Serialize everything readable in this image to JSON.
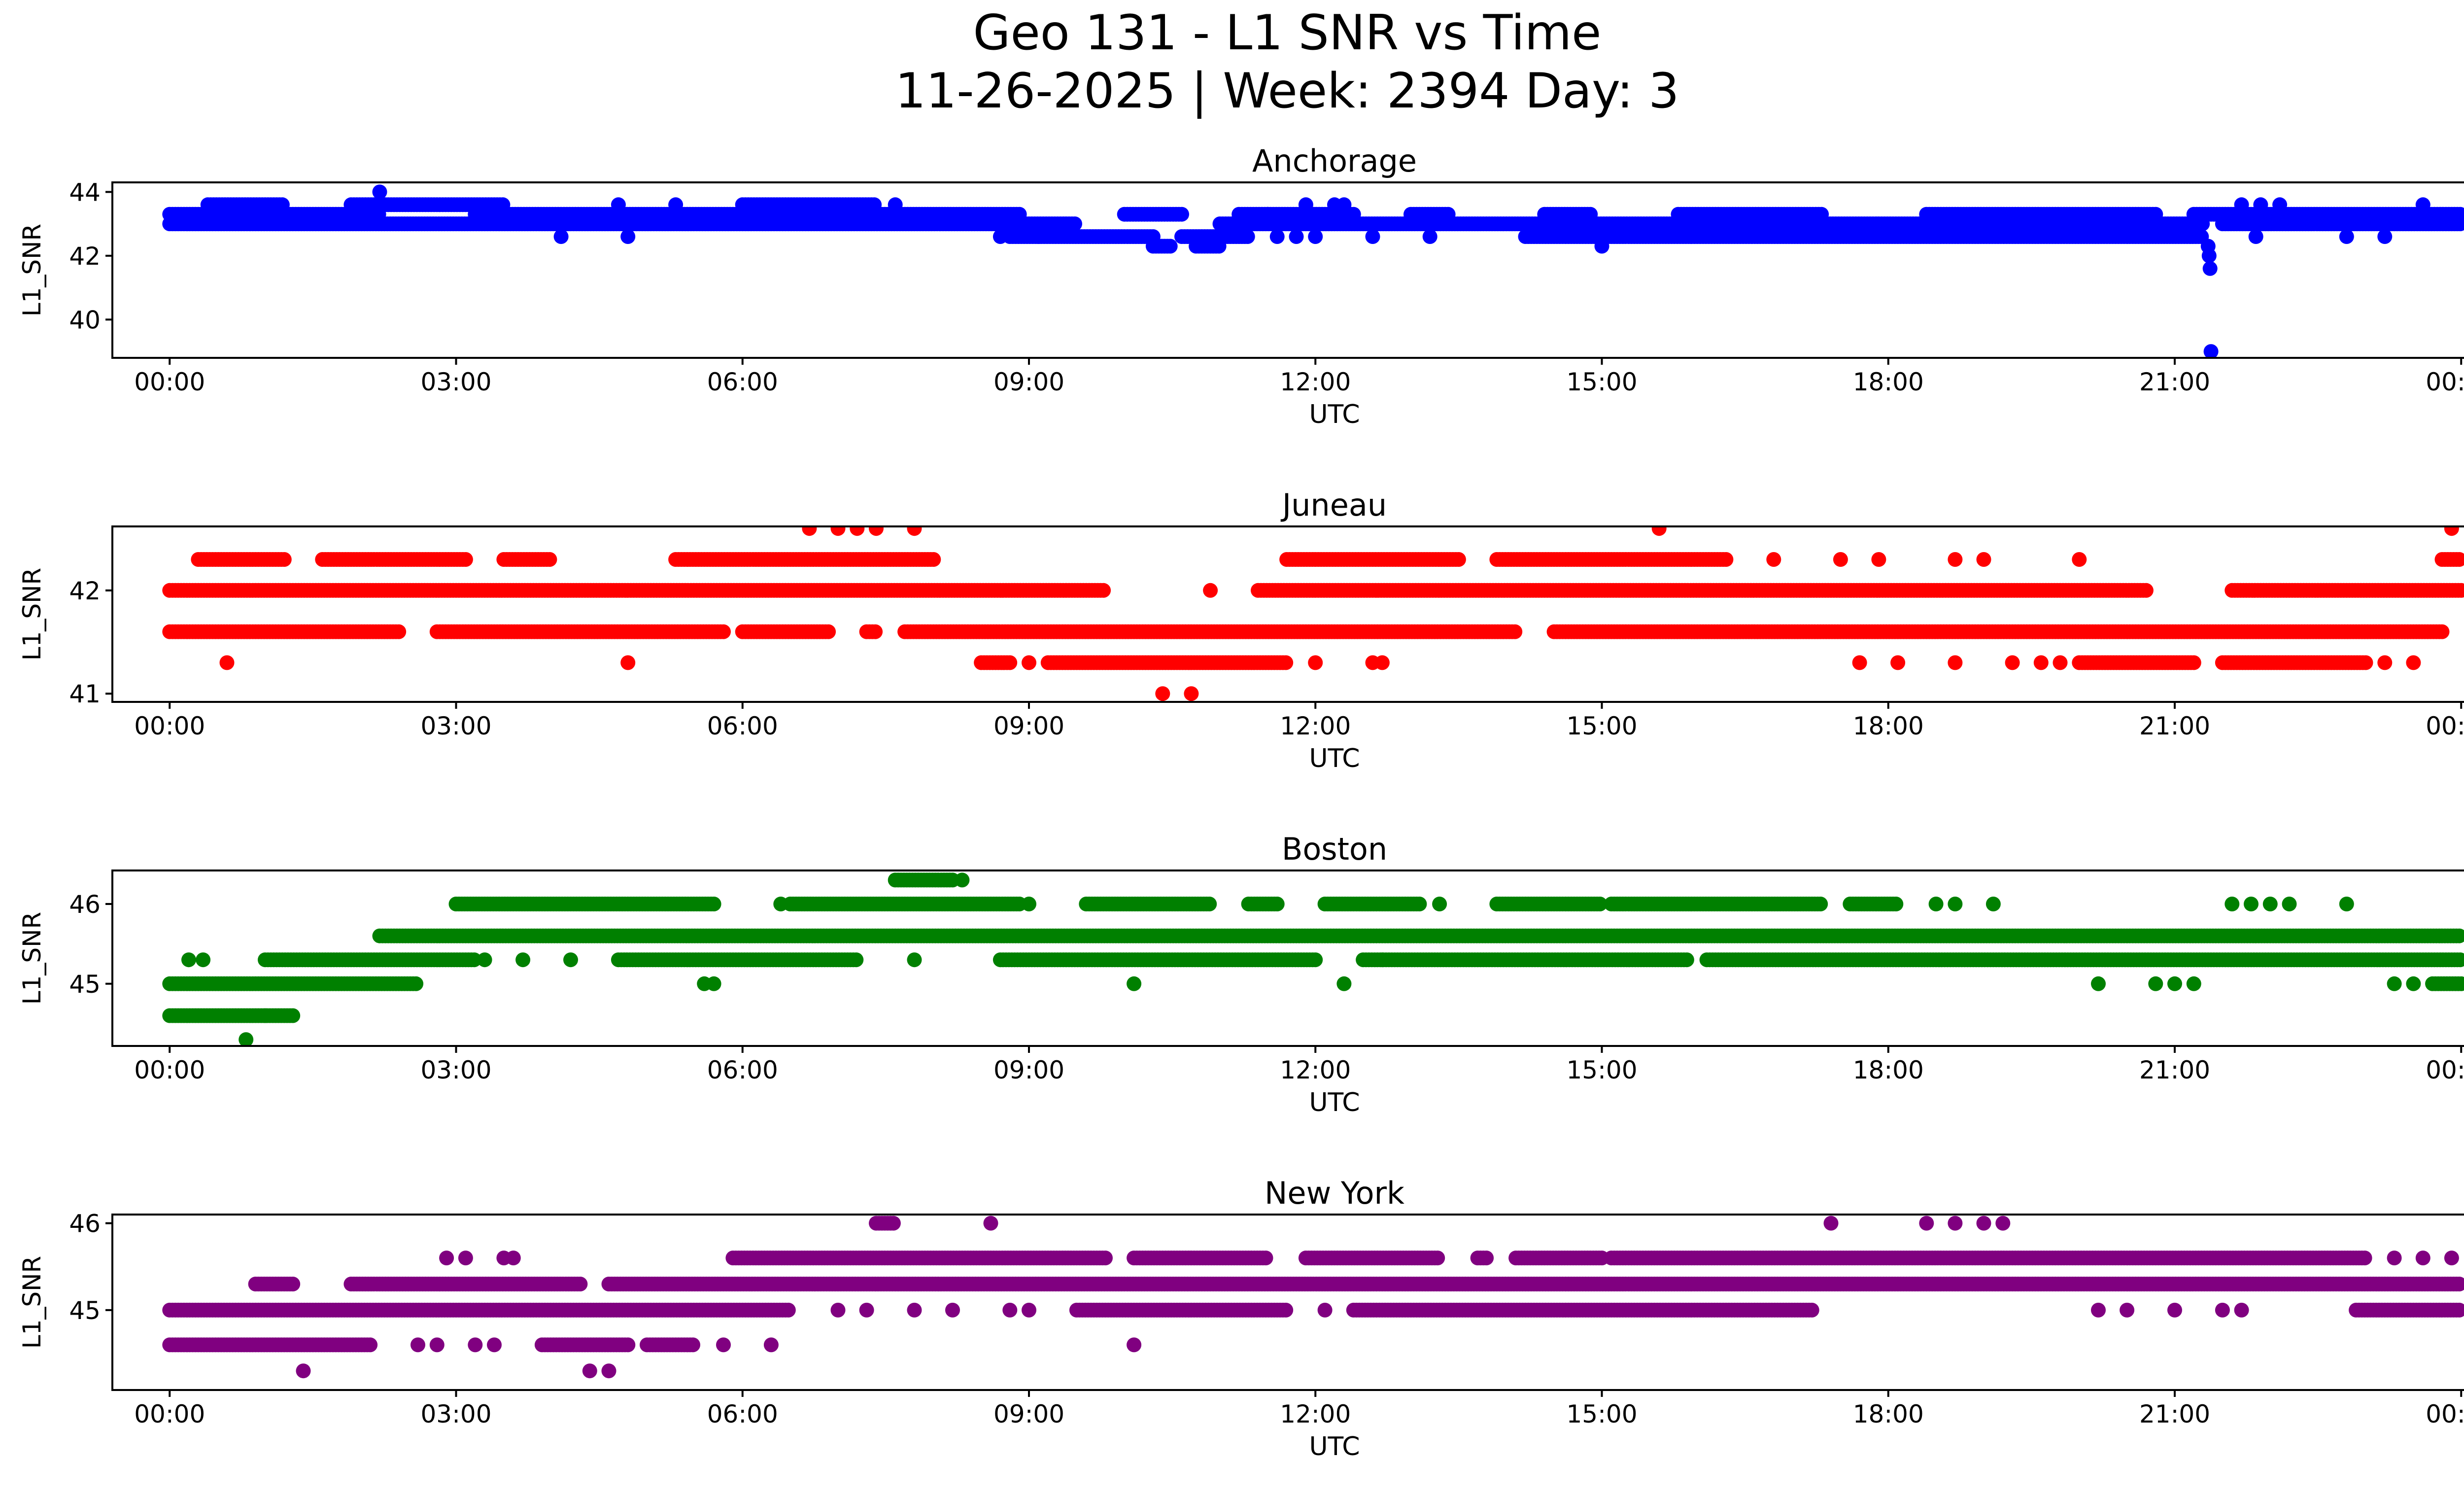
{
  "figure": {
    "title_line1": "Geo 131 - L1 SNR vs Time",
    "title_line2": "11-26-2025 | Week: 2394 Day: 3"
  },
  "chart_data": [
    {
      "type": "scatter",
      "title": "Anchorage",
      "xlabel": "UTC",
      "ylabel": "L1_SNR",
      "color": "#0000ff",
      "xlim": [
        -0.6,
        25.0
      ],
      "ylim": [
        38.8,
        44.3
      ],
      "x_ticks": [
        0,
        3,
        6,
        9,
        12,
        15,
        18,
        21,
        24
      ],
      "x_tick_labels": [
        "00:00",
        "03:00",
        "06:00",
        "09:00",
        "12:00",
        "15:00",
        "18:00",
        "21:00",
        "00:00"
      ],
      "y_ticks": [
        40,
        42,
        44
      ],
      "y_tick_labels": [
        "40",
        "42",
        "44"
      ],
      "levels": [
        {
          "y": 43.3,
          "segments": [
            [
              0.0,
              2.2
            ],
            [
              3.2,
              8.9
            ],
            [
              10.0,
              10.6
            ],
            [
              11.2,
              12.4
            ],
            [
              13.0,
              13.4
            ],
            [
              14.4,
              14.9
            ],
            [
              15.8,
              17.3
            ],
            [
              18.4,
              20.8
            ],
            [
              21.2,
              24.0
            ]
          ]
        },
        {
          "y": 43.0,
          "segments": [
            [
              0.0,
              9.5
            ],
            [
              11.0,
              21.3
            ],
            [
              21.5,
              24.0
            ]
          ]
        },
        {
          "y": 42.6,
          "segments": [
            [
              8.8,
              10.3
            ],
            [
              10.6,
              11.3
            ],
            [
              14.2,
              21.3
            ]
          ]
        },
        {
          "y": 43.6,
          "segments": [
            [
              0.4,
              1.2
            ],
            [
              1.9,
              3.5
            ],
            [
              6.0,
              7.4
            ]
          ]
        },
        {
          "y": 42.3,
          "segments": [
            [
              10.3,
              10.5
            ],
            [
              10.75,
              11.0
            ]
          ]
        }
      ],
      "scattered": [
        [
          2.2,
          44.0
        ],
        [
          4.1,
          42.6
        ],
        [
          4.8,
          42.6
        ],
        [
          4.7,
          43.6
        ],
        [
          5.3,
          43.6
        ],
        [
          7.6,
          43.6
        ],
        [
          8.7,
          42.6
        ],
        [
          9.1,
          42.6
        ],
        [
          11.5,
          43.3
        ],
        [
          11.6,
          42.6
        ],
        [
          11.8,
          42.6
        ],
        [
          12.0,
          42.6
        ],
        [
          11.9,
          43.6
        ],
        [
          12.2,
          43.6
        ],
        [
          12.3,
          43.6
        ],
        [
          12.6,
          42.6
        ],
        [
          13.2,
          42.6
        ],
        [
          15.0,
          42.3
        ],
        [
          21.35,
          42.3
        ],
        [
          21.36,
          42.0
        ],
        [
          21.37,
          41.6
        ],
        [
          21.38,
          39.0
        ],
        [
          21.7,
          43.6
        ],
        [
          21.9,
          43.6
        ],
        [
          22.1,
          43.6
        ],
        [
          21.85,
          42.6
        ],
        [
          22.8,
          42.6
        ],
        [
          23.2,
          42.6
        ],
        [
          23.6,
          43.6
        ]
      ]
    },
    {
      "type": "scatter",
      "title": "Juneau",
      "xlabel": "UTC",
      "ylabel": "L1_SNR",
      "color": "#ff0000",
      "xlim": [
        -0.6,
        25.0
      ],
      "ylim": [
        40.92,
        42.62
      ],
      "x_ticks": [
        0,
        3,
        6,
        9,
        12,
        15,
        18,
        21,
        24
      ],
      "x_tick_labels": [
        "00:00",
        "03:00",
        "06:00",
        "09:00",
        "12:00",
        "15:00",
        "18:00",
        "21:00",
        "00:00"
      ],
      "y_ticks": [
        41,
        42
      ],
      "y_tick_labels": [
        "41",
        "42"
      ],
      "levels": [
        {
          "y": 42.0,
          "segments": [
            [
              0.0,
              9.8
            ],
            [
              10.9,
              10.9
            ],
            [
              11.4,
              20.7
            ],
            [
              21.6,
              24.0
            ]
          ]
        },
        {
          "y": 41.6,
          "segments": [
            [
              0.0,
              2.4
            ],
            [
              2.8,
              5.8
            ],
            [
              6.0,
              6.9
            ],
            [
              7.3,
              7.4
            ],
            [
              7.7,
              14.1
            ],
            [
              14.5,
              23.8
            ]
          ]
        },
        {
          "y": 42.3,
          "segments": [
            [
              0.3,
              1.2
            ],
            [
              1.6,
              3.1
            ],
            [
              3.5,
              4.0
            ],
            [
              5.3,
              8.0
            ],
            [
              11.7,
              13.5
            ],
            [
              13.9,
              16.3
            ],
            [
              23.8,
              24.0
            ]
          ]
        },
        {
          "y": 41.3,
          "segments": [
            [
              8.5,
              8.8
            ],
            [
              9.2,
              11.7
            ],
            [
              20.0,
              21.2
            ],
            [
              21.5,
              23.0
            ]
          ]
        }
      ],
      "scattered": [
        [
          0.6,
          41.3
        ],
        [
          4.8,
          41.3
        ],
        [
          6.7,
          42.6
        ],
        [
          7.0,
          42.6
        ],
        [
          7.2,
          42.6
        ],
        [
          7.4,
          42.6
        ],
        [
          7.8,
          42.6
        ],
        [
          9.0,
          41.3
        ],
        [
          10.4,
          41.0
        ],
        [
          10.7,
          41.0
        ],
        [
          12.0,
          41.3
        ],
        [
          12.6,
          41.3
        ],
        [
          12.7,
          41.3
        ],
        [
          15.6,
          42.6
        ],
        [
          16.8,
          42.3
        ],
        [
          17.5,
          42.3
        ],
        [
          17.9,
          42.3
        ],
        [
          17.7,
          41.3
        ],
        [
          18.1,
          41.3
        ],
        [
          18.7,
          41.3
        ],
        [
          18.7,
          42.3
        ],
        [
          19.0,
          42.3
        ],
        [
          19.3,
          41.3
        ],
        [
          19.6,
          41.3
        ],
        [
          19.8,
          41.3
        ],
        [
          20.0,
          42.3
        ],
        [
          23.2,
          41.3
        ],
        [
          23.5,
          41.3
        ],
        [
          23.9,
          42.6
        ]
      ]
    },
    {
      "type": "scatter",
      "title": "Boston",
      "xlabel": "UTC",
      "ylabel": "L1_SNR",
      "color": "#008000",
      "xlim": [
        -0.6,
        25.0
      ],
      "ylim": [
        44.22,
        46.42
      ],
      "x_ticks": [
        0,
        3,
        6,
        9,
        12,
        15,
        18,
        21,
        24
      ],
      "x_tick_labels": [
        "00:00",
        "03:00",
        "06:00",
        "09:00",
        "12:00",
        "15:00",
        "18:00",
        "21:00",
        "00:00"
      ],
      "y_ticks": [
        45,
        46
      ],
      "y_tick_labels": [
        "45",
        "46"
      ],
      "levels": [
        {
          "y": 45.0,
          "segments": [
            [
              0.0,
              2.6
            ],
            [
              23.7,
              24.0
            ]
          ]
        },
        {
          "y": 44.6,
          "segments": [
            [
              0.0,
              1.3
            ]
          ]
        },
        {
          "y": 45.3,
          "segments": [
            [
              1.0,
              3.2
            ],
            [
              4.7,
              7.2
            ],
            [
              8.7,
              12.0
            ],
            [
              12.5,
              15.9
            ],
            [
              16.1,
              24.0
            ]
          ]
        },
        {
          "y": 45.6,
          "segments": [
            [
              2.2,
              24.0
            ]
          ]
        },
        {
          "y": 46.0,
          "segments": [
            [
              3.0,
              5.7
            ],
            [
              6.5,
              8.9
            ],
            [
              9.6,
              10.9
            ],
            [
              11.3,
              11.6
            ],
            [
              12.1,
              13.1
            ],
            [
              13.9,
              15.0
            ],
            [
              15.1,
              17.3
            ],
            [
              17.6,
              18.1
            ]
          ]
        },
        {
          "y": 46.3,
          "segments": [
            [
              7.6,
              8.2
            ]
          ]
        }
      ],
      "scattered": [
        [
          0.2,
          45.3
        ],
        [
          0.35,
          45.3
        ],
        [
          0.8,
          44.3
        ],
        [
          1.0,
          44.6
        ],
        [
          3.3,
          45.3
        ],
        [
          3.7,
          45.3
        ],
        [
          4.2,
          45.3
        ],
        [
          5.6,
          45.0
        ],
        [
          5.7,
          45.0
        ],
        [
          6.4,
          46.0
        ],
        [
          7.8,
          45.3
        ],
        [
          8.3,
          46.3
        ],
        [
          9.0,
          46.0
        ],
        [
          10.1,
          45.0
        ],
        [
          12.3,
          45.0
        ],
        [
          12.7,
          45.3
        ],
        [
          13.3,
          46.0
        ],
        [
          18.5,
          46.0
        ],
        [
          18.7,
          46.0
        ],
        [
          19.1,
          46.0
        ],
        [
          20.2,
          45.0
        ],
        [
          20.8,
          45.0
        ],
        [
          21.0,
          45.0
        ],
        [
          21.2,
          45.0
        ],
        [
          21.6,
          46.0
        ],
        [
          21.8,
          46.0
        ],
        [
          22.0,
          46.0
        ],
        [
          22.2,
          46.0
        ],
        [
          22.8,
          46.0
        ],
        [
          23.3,
          45.0
        ],
        [
          23.5,
          45.0
        ]
      ]
    },
    {
      "type": "scatter",
      "title": "New York",
      "xlabel": "UTC",
      "ylabel": "L1_SNR",
      "color": "#800080",
      "xlim": [
        -0.6,
        25.0
      ],
      "ylim": [
        44.08,
        46.1
      ],
      "x_ticks": [
        0,
        3,
        6,
        9,
        12,
        15,
        18,
        21,
        24
      ],
      "x_tick_labels": [
        "00:00",
        "03:00",
        "06:00",
        "09:00",
        "12:00",
        "15:00",
        "18:00",
        "21:00",
        "00:00"
      ],
      "y_ticks": [
        45,
        46
      ],
      "y_tick_labels": [
        "45",
        "46"
      ],
      "levels": [
        {
          "y": 45.0,
          "segments": [
            [
              0.0,
              6.5
            ],
            [
              9.5,
              11.7
            ],
            [
              12.4,
              17.2
            ],
            [
              22.9,
              24.0
            ]
          ]
        },
        {
          "y": 44.6,
          "segments": [
            [
              0.0,
              2.1
            ],
            [
              3.9,
              4.8
            ],
            [
              5.0,
              5.5
            ]
          ]
        },
        {
          "y": 45.3,
          "segments": [
            [
              0.9,
              1.3
            ],
            [
              1.9,
              4.3
            ],
            [
              4.6,
              24.0
            ]
          ]
        },
        {
          "y": 45.6,
          "segments": [
            [
              5.9,
              9.8
            ],
            [
              10.1,
              11.5
            ],
            [
              11.9,
              13.3
            ],
            [
              13.7,
              13.8
            ],
            [
              14.1,
              15.0
            ],
            [
              15.1,
              23.0
            ]
          ]
        },
        {
          "y": 46.0,
          "segments": [
            [
              7.4,
              7.6
            ]
          ]
        }
      ],
      "scattered": [
        [
          1.4,
          44.3
        ],
        [
          2.6,
          44.6
        ],
        [
          2.8,
          44.6
        ],
        [
          2.9,
          45.6
        ],
        [
          3.1,
          45.6
        ],
        [
          3.2,
          44.6
        ],
        [
          3.4,
          44.6
        ],
        [
          3.5,
          45.6
        ],
        [
          3.6,
          45.6
        ],
        [
          4.4,
          44.3
        ],
        [
          4.6,
          44.3
        ],
        [
          5.8,
          44.6
        ],
        [
          6.3,
          44.6
        ],
        [
          7.0,
          45.0
        ],
        [
          7.3,
          45.0
        ],
        [
          7.8,
          45.0
        ],
        [
          8.2,
          45.0
        ],
        [
          8.6,
          46.0
        ],
        [
          8.8,
          45.0
        ],
        [
          9.0,
          45.0
        ],
        [
          10.1,
          44.6
        ],
        [
          12.1,
          45.0
        ],
        [
          17.4,
          46.0
        ],
        [
          18.4,
          46.0
        ],
        [
          18.7,
          46.0
        ],
        [
          19.0,
          46.0
        ],
        [
          19.2,
          46.0
        ],
        [
          20.2,
          45.0
        ],
        [
          20.5,
          45.0
        ],
        [
          21.0,
          45.0
        ],
        [
          21.5,
          45.0
        ],
        [
          21.7,
          45.0
        ],
        [
          23.3,
          45.6
        ],
        [
          23.6,
          45.6
        ],
        [
          23.9,
          45.6
        ]
      ]
    }
  ]
}
